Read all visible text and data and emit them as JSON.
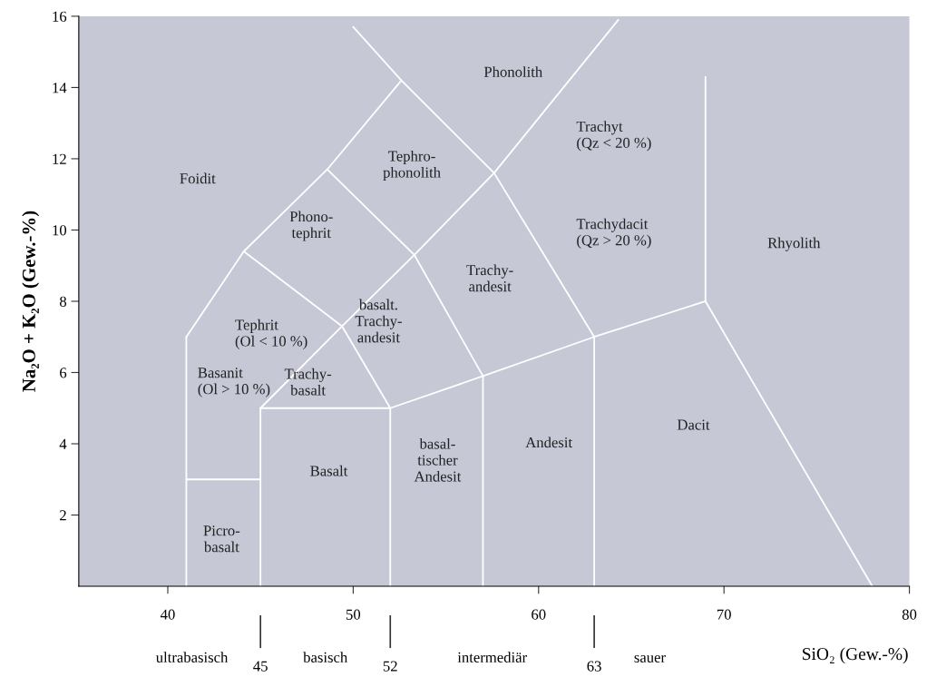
{
  "chart_data": {
    "type": "line",
    "xlabel": "SiO₂ (Gew.-%)",
    "ylabel": "Na₂O + K₂O (Gew.-%)",
    "xlim": [
      35.2,
      80
    ],
    "xticks": [
      40,
      50,
      60,
      70,
      80
    ],
    "ylim": [
      0,
      16
    ],
    "yticks": [
      2,
      4,
      6,
      8,
      10,
      12,
      14,
      16
    ],
    "x2lim": [
      35.2,
      80
    ],
    "x2ticks": [
      45,
      52,
      63
    ],
    "grid": false,
    "marker": "none",
    "line_style": "solid",
    "series": [
      {
        "color": "#ffffff",
        "x": [
          41,
          45
        ],
        "values": [
          3,
          3
        ]
      },
      {
        "color": "#ffffff",
        "x": [
          41,
          41
        ],
        "values": [
          0,
          7
        ]
      },
      {
        "color": "#ffffff",
        "x": [
          45,
          45
        ],
        "values": [
          0,
          5
        ]
      },
      {
        "color": "#ffffff",
        "x": [
          52,
          52
        ],
        "values": [
          0,
          5
        ]
      },
      {
        "color": "#ffffff",
        "x": [
          57,
          57
        ],
        "values": [
          0,
          5.9
        ]
      },
      {
        "color": "#ffffff",
        "x": [
          63,
          63
        ],
        "values": [
          0,
          7
        ]
      },
      {
        "color": "#ffffff",
        "x": [
          45,
          52,
          57,
          63,
          69,
          78
        ],
        "values": [
          5,
          5,
          5.9,
          7,
          8,
          0
        ]
      },
      {
        "color": "#ffffff",
        "x": [
          69,
          69
        ],
        "values": [
          8,
          14.3
        ]
      },
      {
        "color": "#ffffff",
        "x": [
          41,
          44.1,
          48.6,
          52.6
        ],
        "values": [
          7,
          9.4,
          11.7,
          14.2
        ]
      },
      {
        "color": "#ffffff",
        "x": [
          45,
          49.4,
          53.3,
          57.6,
          64.3
        ],
        "values": [
          5,
          7.3,
          9.3,
          11.6,
          15.9
        ]
      },
      {
        "color": "#ffffff",
        "x": [
          44.1,
          49.4,
          52
        ],
        "values": [
          9.4,
          7.3,
          5
        ]
      },
      {
        "color": "#ffffff",
        "x": [
          48.6,
          53.3,
          57
        ],
        "values": [
          11.7,
          9.3,
          5.9
        ]
      },
      {
        "color": "#ffffff",
        "x": [
          50,
          52.6,
          57.6,
          63
        ],
        "values": [
          15.7,
          14.2,
          11.6,
          7
        ]
      }
    ],
    "annotations": [
      "Foidit",
      "Phonolith",
      "Trachyt\n(Qz < 20 %)",
      "Tephro-\nphonolith",
      "Phono-\ntephrit",
      "Trachydacit\n(Qz > 20 %)",
      "Rhyolith",
      "Trachy-\nandesit",
      "Tephrit\n(Ol < 10 %)",
      "basalt.\nTrachy-\nandesit",
      "Basanit\n(Ol > 10 %)",
      "Trachy-\nbasalt",
      "Basalt",
      "basal-\ntischer\nAndesit",
      "Andesit",
      "Dacit",
      "Picro-\nbasalt",
      "ultrabasisch",
      "basisch",
      "intermediär",
      "sauer"
    ]
  }
}
